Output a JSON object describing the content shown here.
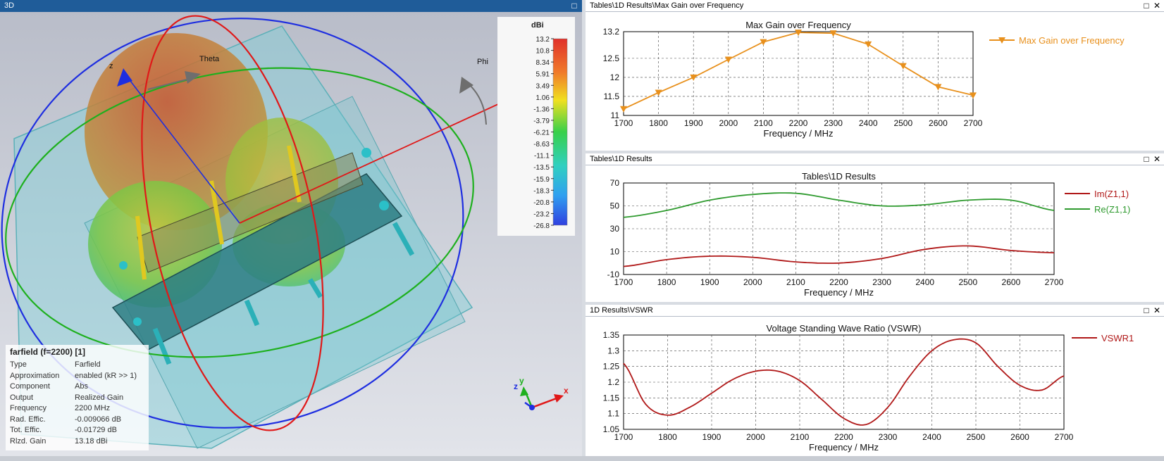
{
  "panel3d": {
    "title": "3D",
    "axis_labels": {
      "theta": "Theta",
      "phi": "Phi",
      "z": "z"
    },
    "triad": {
      "x": "x",
      "y": "y",
      "z": "z"
    },
    "legend": {
      "unit": "dBi",
      "ticks": [
        "13.2",
        "10.8",
        "8.34",
        "5.91",
        "3.49",
        "1.06",
        "-1.36",
        "-3.79",
        "-6.21",
        "-8.63",
        "-11.1",
        "-13.5",
        "-15.9",
        "-18.3",
        "-20.8",
        "-23.2",
        "-26.8"
      ]
    },
    "info": {
      "title": "farfield (f=2200) [1]",
      "rows": [
        {
          "k": "Type",
          "v": "Farfield"
        },
        {
          "k": "Approximation",
          "v": "enabled (kR >> 1)"
        },
        {
          "k": "Component",
          "v": "Abs"
        },
        {
          "k": "Output",
          "v": "Realized Gain"
        },
        {
          "k": "Frequency",
          "v": "2200 MHz"
        },
        {
          "k": "Rad. Effic.",
          "v": "-0.009066 dB"
        },
        {
          "k": "Tot. Effic.",
          "v": "-0.01729 dB"
        },
        {
          "k": "Rlzd. Gain",
          "v": "13.18 dBi"
        }
      ]
    }
  },
  "windows": {
    "gain": {
      "title": "Tables\\1D Results\\Max Gain over Frequency"
    },
    "imp": {
      "title": "Tables\\1D Results"
    },
    "vswr": {
      "title": "1D Results\\VSWR"
    }
  },
  "chart_data": [
    {
      "type": "line",
      "title": "Max Gain over Frequency",
      "xlabel": "Frequency / MHz",
      "ylabel": "",
      "xlim": [
        1700,
        2700
      ],
      "ylim": [
        11,
        13.2
      ],
      "xticks": [
        "1700",
        "1800",
        "1900",
        "2000",
        "2100",
        "2200",
        "2300",
        "2400",
        "2500",
        "2600",
        "2700"
      ],
      "yticks": [
        "11",
        "11.5",
        "12",
        "12.5",
        "13.2"
      ],
      "grid": true,
      "legend_position": "right",
      "series": [
        {
          "name": "Max Gain over Frequency",
          "color": "#e8901c",
          "marker": "triangle-down",
          "x": [
            1700,
            1800,
            1900,
            2000,
            2100,
            2200,
            2300,
            2400,
            2500,
            2600,
            2700
          ],
          "y": [
            11.17,
            11.6,
            12.0,
            12.47,
            12.93,
            13.18,
            13.16,
            12.87,
            12.3,
            11.75,
            11.53
          ]
        }
      ]
    },
    {
      "type": "line",
      "title": "Tables\\1D Results",
      "xlabel": "Frequency / MHz",
      "ylabel": "",
      "xlim": [
        1700,
        2700
      ],
      "ylim": [
        -10,
        70
      ],
      "xticks": [
        "1700",
        "1800",
        "1900",
        "2000",
        "2100",
        "2200",
        "2300",
        "2400",
        "2500",
        "2600",
        "2700"
      ],
      "yticks": [
        "-10",
        "10",
        "30",
        "50",
        "70"
      ],
      "grid": true,
      "legend_position": "right",
      "series": [
        {
          "name": "Im(Z1,1)",
          "color": "#b01818",
          "x": [
            1700,
            1800,
            1900,
            2000,
            2100,
            2200,
            2300,
            2400,
            2500,
            2600,
            2700
          ],
          "y": [
            -3,
            3,
            6,
            5,
            1,
            0,
            4,
            12,
            15,
            11,
            9
          ]
        },
        {
          "name": "Re(Z1,1)",
          "color": "#2e9a2e",
          "x": [
            1700,
            1800,
            1900,
            2000,
            2100,
            2200,
            2300,
            2400,
            2500,
            2600,
            2700
          ],
          "y": [
            40,
            46,
            55,
            60,
            61,
            55,
            50,
            51,
            55,
            55,
            46
          ]
        }
      ]
    },
    {
      "type": "line",
      "title": "Voltage Standing Wave Ratio (VSWR)",
      "xlabel": "Frequency / MHz",
      "ylabel": "",
      "xlim": [
        1700,
        2700
      ],
      "ylim": [
        1.05,
        1.35
      ],
      "xticks": [
        "1700",
        "1800",
        "1900",
        "2000",
        "2100",
        "2200",
        "2300",
        "2400",
        "2500",
        "2600",
        "2700"
      ],
      "yticks": [
        "1.05",
        "1.1",
        "1.15",
        "1.2",
        "1.25",
        "1.3",
        "1.35"
      ],
      "grid": true,
      "legend_position": "right",
      "series": [
        {
          "name": "VSWR1",
          "color": "#b01818",
          "x": [
            1700,
            1750,
            1800,
            1850,
            1900,
            1950,
            2000,
            2050,
            2100,
            2150,
            2200,
            2250,
            2300,
            2350,
            2400,
            2450,
            2500,
            2550,
            2600,
            2650,
            2700
          ],
          "y": [
            1.26,
            1.13,
            1.095,
            1.12,
            1.165,
            1.21,
            1.235,
            1.235,
            1.205,
            1.145,
            1.085,
            1.065,
            1.12,
            1.22,
            1.3,
            1.335,
            1.325,
            1.25,
            1.19,
            1.175,
            1.22
          ]
        }
      ]
    }
  ]
}
